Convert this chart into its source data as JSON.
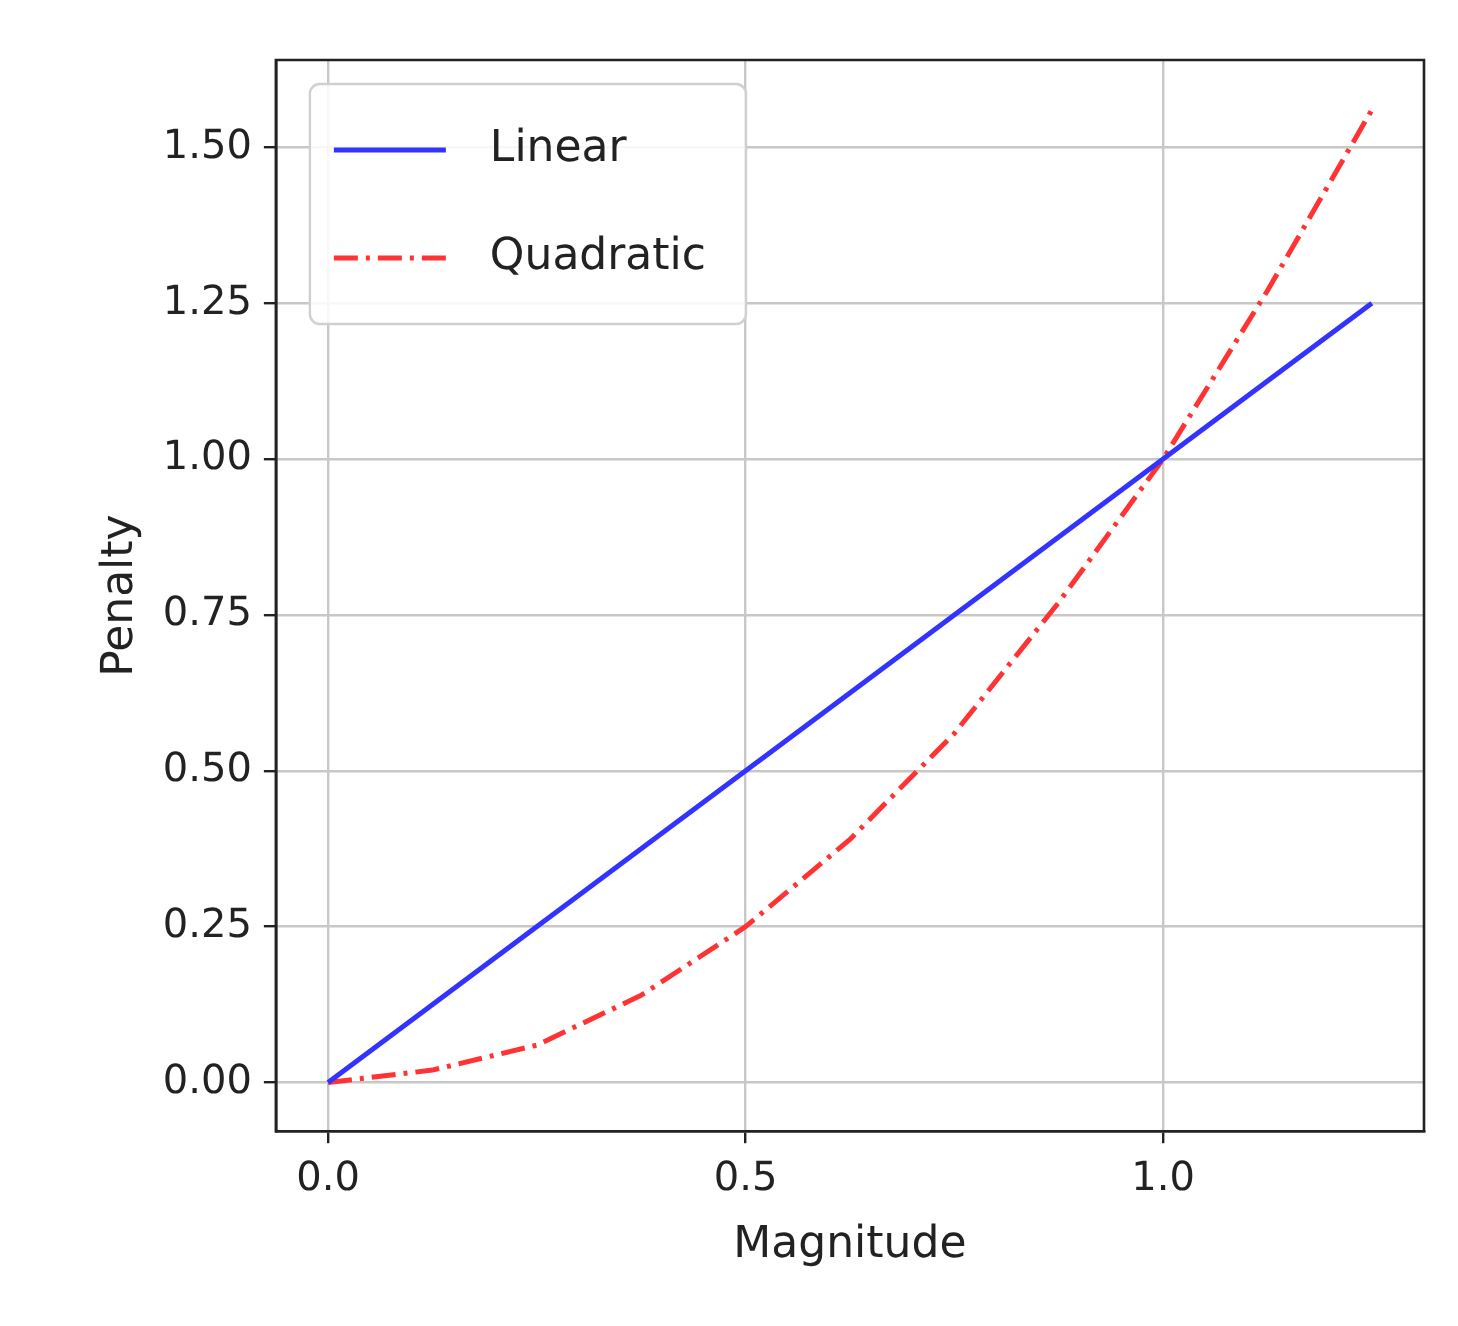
{
  "chart_data": {
    "type": "line",
    "xlabel": "Magnitude",
    "ylabel": "Penalty",
    "xlim": [
      -0.0625,
      1.3125
    ],
    "xticks": [
      {
        "value": 0,
        "label": "0.0"
      },
      {
        "value": 0.5,
        "label": "0.5"
      },
      {
        "value": 1,
        "label": "1.0"
      }
    ],
    "ylim": [
      -0.078,
      1.64
    ],
    "yticks": [
      {
        "value": 0,
        "label": "0.00"
      },
      {
        "value": 0.25,
        "label": "0.25"
      },
      {
        "value": 0.5,
        "label": "0.50"
      },
      {
        "value": 0.75,
        "label": "0.75"
      },
      {
        "value": 1,
        "label": "1.00"
      },
      {
        "value": 1.25,
        "label": "1.25"
      },
      {
        "value": 1.5,
        "label": "1.50"
      }
    ],
    "grid": true,
    "legend": "top left",
    "marker": "none",
    "series": [
      {
        "name": "Linear",
        "color": "#3333ff",
        "line_style": "solid",
        "x": [
          0,
          1.25
        ],
        "values": [
          0,
          1.25
        ]
      },
      {
        "name": "Quadratic",
        "color": "#ff3333",
        "line_style": "dashed",
        "x": [
          0,
          0.125,
          0.25,
          0.375,
          0.5,
          0.625,
          0.75,
          0.875,
          1,
          1.125,
          1.25
        ],
        "values": [
          0,
          0.02,
          0.06,
          0.14,
          0.25,
          0.39,
          0.56,
          0.77,
          1,
          1.27,
          1.56
        ]
      }
    ]
  }
}
